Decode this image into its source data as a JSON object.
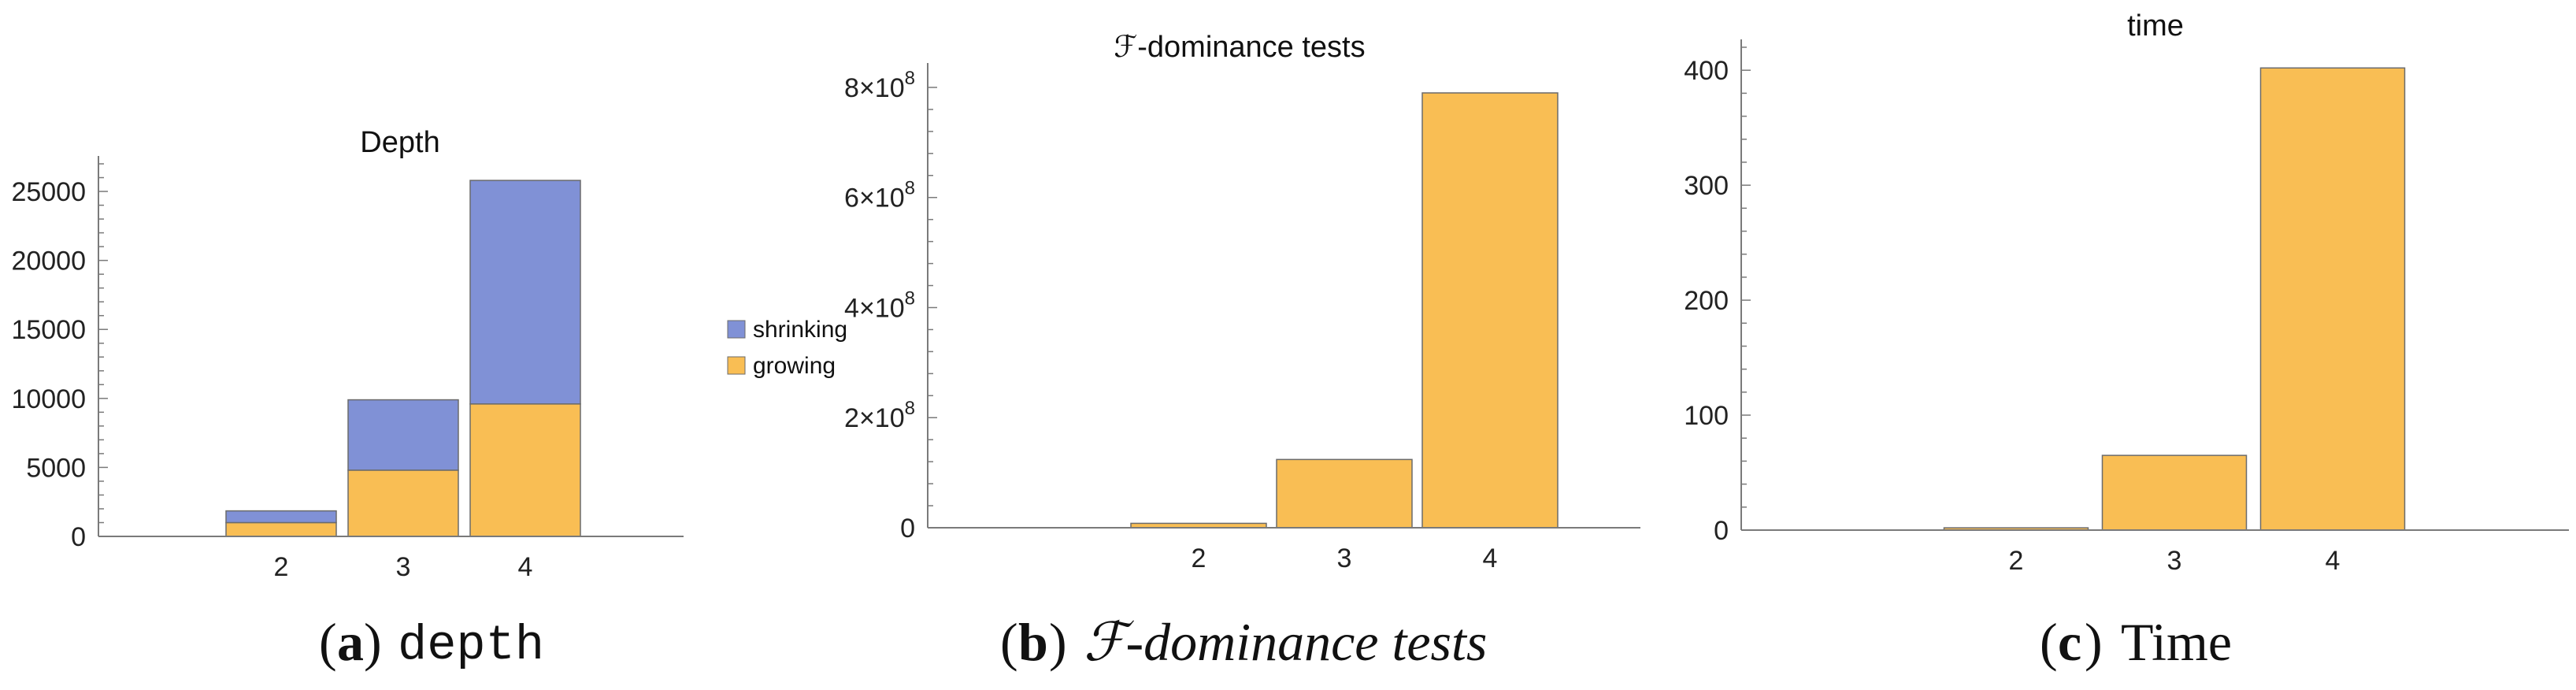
{
  "colors": {
    "growing": "#F9BE54",
    "shrinking": "#8091D6",
    "bar_stroke": "#6b6b6b",
    "axis": "#7a7a7a"
  },
  "captions": [
    {
      "letter": "a",
      "text": "depth"
    },
    {
      "letter": "b",
      "text": "ℱ-dominance tests"
    },
    {
      "letter": "c",
      "text": "Time"
    }
  ],
  "chart_data": [
    {
      "type": "bar",
      "stacked": true,
      "title": "Depth",
      "categories": [
        "2",
        "3",
        "4"
      ],
      "series": [
        {
          "name": "growing",
          "values": [
            1000,
            4800,
            9600
          ]
        },
        {
          "name": "shrinking",
          "values": [
            850,
            5100,
            16200
          ]
        }
      ],
      "ylim": [
        0,
        27000
      ],
      "yticks": [
        0,
        5000,
        10000,
        15000,
        20000,
        25000
      ],
      "ytick_labels": [
        "0",
        "5000",
        "10000",
        "15000",
        "20000",
        "25000"
      ],
      "legend": {
        "placement": "right",
        "entries": [
          "shrinking",
          "growing"
        ]
      },
      "grid": false
    },
    {
      "type": "bar",
      "title": "ℱ-dominance tests",
      "categories": [
        "2",
        "3",
        "4"
      ],
      "series": [
        {
          "name": "growing",
          "values": [
            8000000,
            124000000,
            790000000
          ]
        }
      ],
      "ylim": [
        0,
        830000000
      ],
      "yticks": [
        0,
        200000000,
        400000000,
        600000000,
        800000000
      ],
      "ytick_labels": [
        "0",
        "2×10⁸",
        "4×10⁸",
        "6×10⁸",
        "8×10⁸"
      ],
      "legend": null,
      "grid": false
    },
    {
      "type": "bar",
      "title": "time",
      "categories": [
        "2",
        "3",
        "4"
      ],
      "series": [
        {
          "name": "growing",
          "values": [
            2,
            65,
            402
          ]
        }
      ],
      "ylim": [
        0,
        420
      ],
      "yticks": [
        0,
        100,
        200,
        300,
        400
      ],
      "ytick_labels": [
        "0",
        "100",
        "200",
        "300",
        "400"
      ],
      "legend": null,
      "grid": false
    }
  ]
}
